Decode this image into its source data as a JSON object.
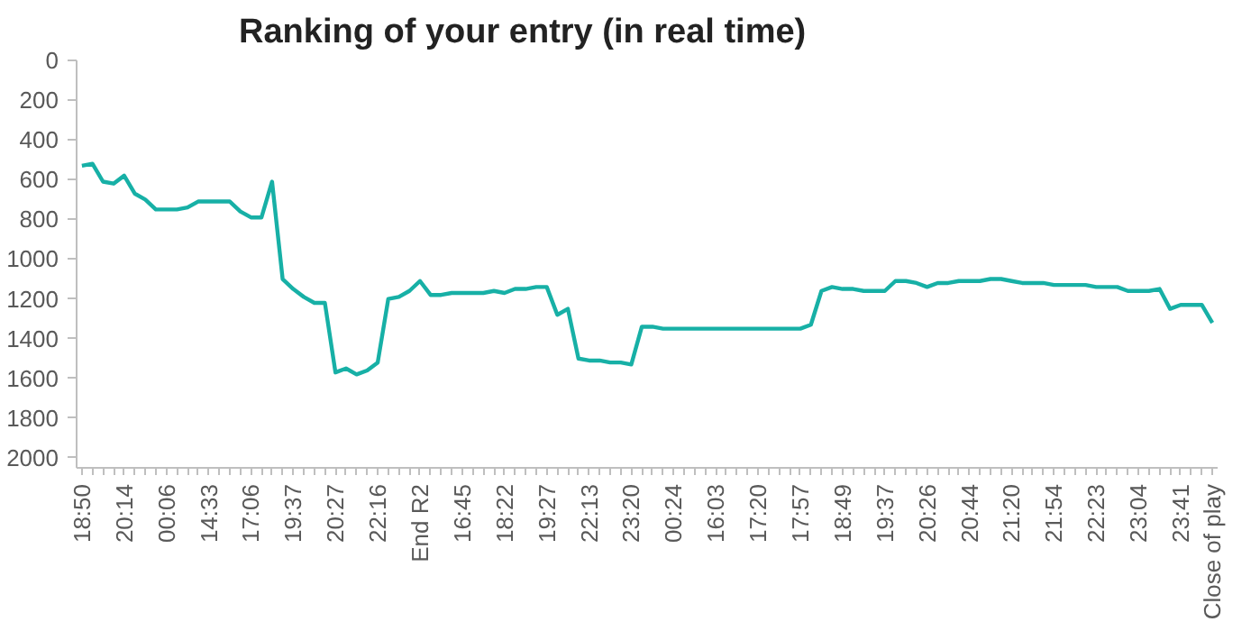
{
  "chart_data": {
    "type": "line",
    "title": "Ranking of your entry (in real time)",
    "categories": [
      "18:50",
      null,
      null,
      null,
      "20:14",
      null,
      null,
      null,
      "00:06",
      null,
      null,
      null,
      "14:33",
      null,
      null,
      null,
      "17:06",
      null,
      null,
      null,
      "19:37",
      null,
      null,
      null,
      "20:27",
      null,
      null,
      null,
      "22:16",
      null,
      null,
      null,
      "End R2",
      null,
      null,
      null,
      "16:45",
      null,
      null,
      null,
      "18:22",
      null,
      null,
      null,
      "19:27",
      null,
      null,
      null,
      "22:13",
      null,
      null,
      null,
      "23:20",
      null,
      null,
      null,
      "00:24",
      null,
      null,
      null,
      "16:03",
      null,
      null,
      null,
      "17:20",
      null,
      null,
      null,
      "17:57",
      null,
      null,
      null,
      "18:49",
      null,
      null,
      null,
      "19:37",
      null,
      null,
      null,
      "20:26",
      null,
      null,
      null,
      "20:44",
      null,
      null,
      null,
      "21:20",
      null,
      null,
      null,
      "21:54",
      null,
      null,
      null,
      "22:23",
      null,
      null,
      null,
      "23:04",
      null,
      null,
      null,
      "23:41",
      null,
      null,
      "Close of play"
    ],
    "series": [
      {
        "color": "#17b0a6",
        "values": [
          530,
          520,
          610,
          620,
          580,
          670,
          700,
          750,
          750,
          750,
          740,
          710,
          710,
          710,
          710,
          760,
          790,
          790,
          610,
          1100,
          1150,
          1190,
          1220,
          1220,
          1570,
          1550,
          1580,
          1560,
          1520,
          1200,
          1190,
          1160,
          1110,
          1180,
          1180,
          1170,
          1170,
          1170,
          1170,
          1160,
          1170,
          1150,
          1150,
          1140,
          1140,
          1280,
          1250,
          1500,
          1510,
          1510,
          1520,
          1520,
          1530,
          1340,
          1340,
          1350,
          1350,
          1350,
          1350,
          1350,
          1350,
          1350,
          1350,
          1350,
          1350,
          1350,
          1350,
          1350,
          1350,
          1330,
          1160,
          1140,
          1150,
          1150,
          1160,
          1160,
          1160,
          1110,
          1110,
          1120,
          1140,
          1120,
          1120,
          1110,
          1110,
          1110,
          1100,
          1100,
          1110,
          1120,
          1120,
          1120,
          1130,
          1130,
          1130,
          1130,
          1140,
          1140,
          1140,
          1160,
          1160,
          1160,
          1150,
          1250,
          1230,
          1230,
          1230,
          1320
        ]
      }
    ],
    "ylim": [
      2050,
      0
    ],
    "yticks": [
      0,
      200,
      400,
      600,
      800,
      1000,
      1200,
      1400,
      1600,
      1800,
      2000
    ],
    "grid": false,
    "marker": "none",
    "line_style": "solid"
  }
}
